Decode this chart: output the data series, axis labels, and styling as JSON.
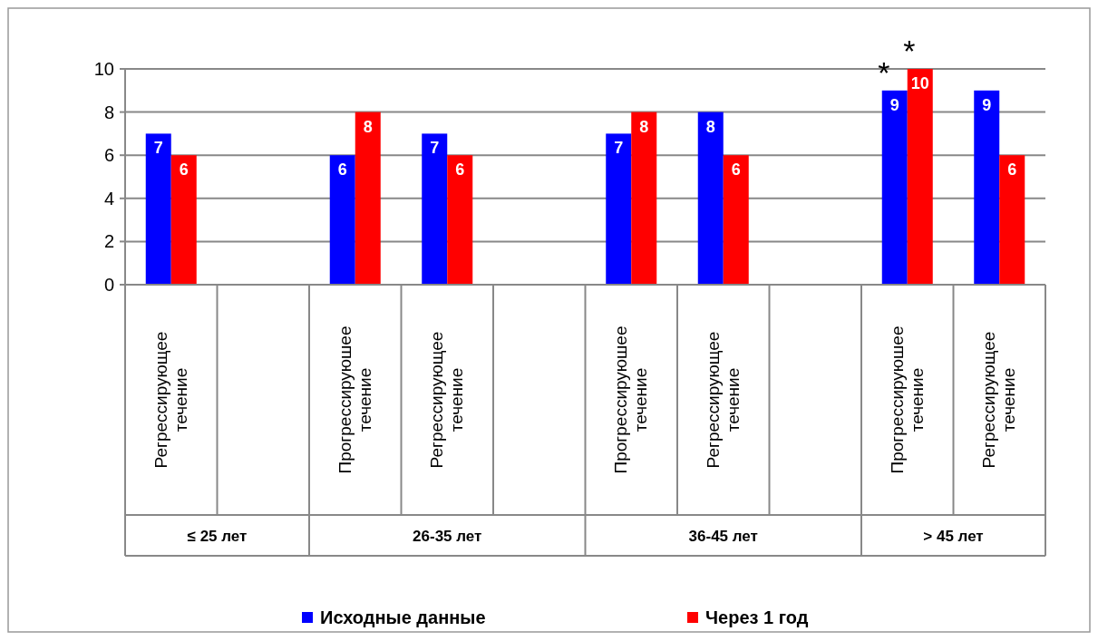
{
  "chart_data": {
    "type": "bar",
    "categories": [
      "Регрессирующее течение",
      null,
      "Прогрессируюшее течение",
      "Регрессирующее течение",
      null,
      "Прогрессируюшее течение",
      "Регрессирующее течение",
      null,
      "Прогрессируюшее течение",
      "Регрессирующее течение"
    ],
    "series": [
      {
        "name": "Исходные данные",
        "color": "#0000ff",
        "values": [
          7,
          null,
          6,
          7,
          null,
          7,
          8,
          null,
          9,
          9
        ]
      },
      {
        "name": "Через 1 год",
        "color": "#ff0000",
        "values": [
          6,
          null,
          8,
          6,
          null,
          8,
          6,
          null,
          10,
          6
        ]
      }
    ],
    "ylim": [
      0,
      10
    ],
    "yticks": [
      0,
      2,
      4,
      6,
      8,
      10
    ],
    "grid": "y",
    "legend": "bottom",
    "data_labels": true,
    "annotations": [
      "≤ 25 лет",
      "26-35 лет",
      "36-45 лет",
      "> 45 лет",
      "*",
      "*"
    ]
  }
}
